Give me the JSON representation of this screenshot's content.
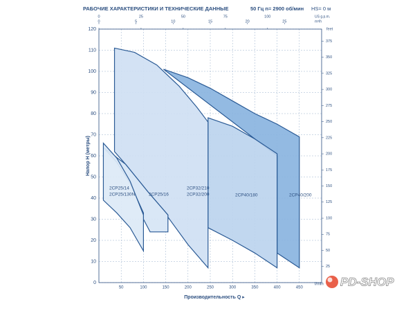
{
  "chart_data": {
    "type": "area-regions",
    "title": "РАБОЧИЕ ХАРАКТЕРИСТИКИ И ТЕХНИЧЕСКИЕ ДАННЫЕ",
    "subtitle": "50 Гц   n= 2900 об/мин",
    "note": "HS= 0 м",
    "ylabel": "Напор H (метры)",
    "xlabel": "Производительность Q  ▸",
    "xunit": "l/min",
    "y2unit": "feet",
    "xlim": [
      0,
      500
    ],
    "xticks": [
      50,
      100,
      150,
      200,
      250,
      300,
      350,
      400,
      450
    ],
    "ylim": [
      0,
      120
    ],
    "yticks": [
      0,
      10,
      20,
      30,
      40,
      50,
      60,
      70,
      80,
      90,
      100,
      110,
      120
    ],
    "y2lim": [
      0,
      393.7
    ],
    "y2ticks": [
      25,
      50,
      75,
      100,
      125,
      150,
      175,
      200,
      225,
      250,
      275,
      300,
      325,
      350,
      375
    ],
    "top_axes": [
      {
        "unit": "US g.p.m.",
        "lim": [
          0,
          132.1
        ],
        "ticks": [
          0,
          25,
          50,
          75,
          100
        ]
      },
      {
        "unit": "m³/h",
        "lim": [
          0,
          30
        ],
        "ticks": [
          0,
          5,
          10,
          15,
          20,
          25
        ]
      }
    ],
    "grid": true,
    "series": [
      {
        "labels": [
          "2CP40/200"
        ],
        "color": "#8ab4e0",
        "x": [
          145,
          200,
          250,
          300,
          350,
          400,
          450,
          450,
          400,
          400
        ],
        "y": [
          101,
          97,
          92,
          86,
          80,
          75,
          69,
          7,
          14,
          60
        ]
      },
      {
        "labels": [
          "2CP40/180"
        ],
        "color": "#bcd4ee",
        "x": [
          245,
          300,
          350,
          400,
          400,
          350,
          300,
          245
        ],
        "y": [
          78,
          74,
          68,
          61,
          7,
          14,
          20,
          26
        ]
      },
      {
        "labels": [
          "2CP32/210",
          "2CP32/200"
        ],
        "color": "#cfe0f3",
        "x": [
          35,
          80,
          130,
          180,
          220,
          245,
          245,
          200,
          155,
          155,
          110,
          60,
          35
        ],
        "y": [
          111,
          109,
          103,
          93,
          83,
          76,
          7,
          18,
          31,
          32,
          43,
          56,
          62
        ]
      },
      {
        "labels": [
          "2CP25/16"
        ],
        "color": "#d6e5f5",
        "x": [
          10,
          60,
          110,
          155,
          155,
          115,
          100,
          100,
          70,
          40,
          10
        ],
        "y": [
          64,
          56,
          43,
          32,
          24,
          24,
          30,
          33,
          47,
          57,
          64
        ]
      },
      {
        "labels": [
          "2CP25/14",
          "2CP25/130N"
        ],
        "color": "#dce9f6",
        "x": [
          10,
          40,
          70,
          100,
          100,
          70,
          40,
          10
        ],
        "y": [
          66,
          59,
          48,
          32,
          15,
          26,
          33,
          39
        ]
      }
    ]
  },
  "logo": "PD-SHOP"
}
